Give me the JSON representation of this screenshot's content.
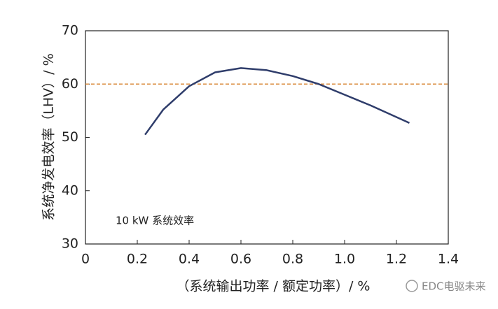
{
  "chart_data": {
    "type": "line",
    "x": [
      0.23,
      0.3,
      0.4,
      0.5,
      0.6,
      0.7,
      0.8,
      0.9,
      1.0,
      1.1,
      1.2,
      1.25
    ],
    "series": [
      {
        "name": "10 kW 系统效率",
        "color": "#2f3d6b",
        "values": [
          50.5,
          55.2,
          59.6,
          62.2,
          63.0,
          62.6,
          61.5,
          60.0,
          58.0,
          56.0,
          53.8,
          52.7
        ]
      }
    ],
    "xlim": [
      0,
      1.4
    ],
    "xticks": [
      0,
      0.2,
      0.4,
      0.6,
      0.8,
      {
        "value": 1.0,
        "label": "1.0"
      },
      1.2,
      1.4
    ],
    "ylim": [
      30,
      70
    ],
    "yticks": [
      30,
      40,
      50,
      60,
      70
    ],
    "reference_line": {
      "value": 60,
      "color": "#d9893a"
    },
    "xlabel": "（系统输出功率 / 额定功率）/ %",
    "ylabel": "系统净发电效率（LHV）/ %",
    "annotation": "10 kW 系统效率",
    "watermark": "EDC电驱未来"
  }
}
